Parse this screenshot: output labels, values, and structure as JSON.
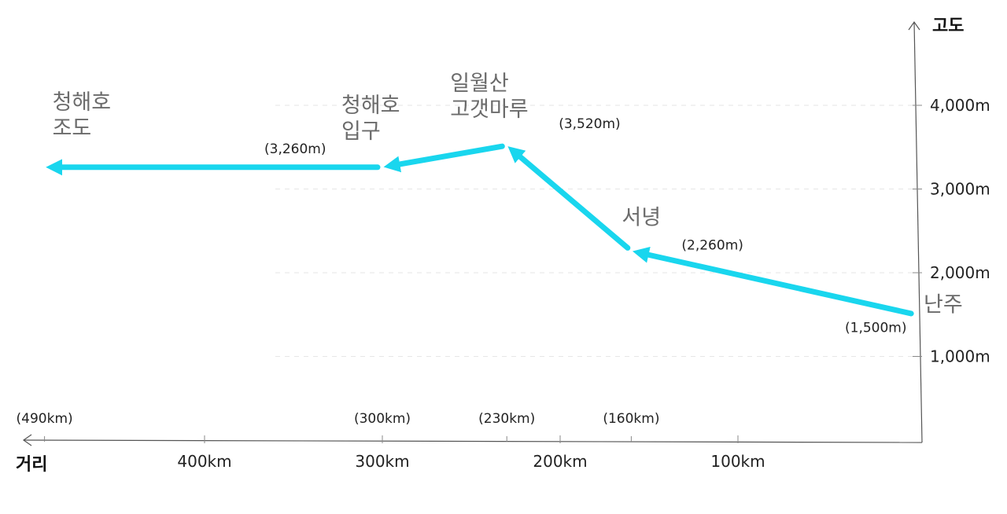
{
  "chart_data": {
    "type": "line",
    "xlabel": "거리",
    "ylabel": "고도",
    "x_reversed": true,
    "xlim": [
      0,
      505
    ],
    "ylim": [
      0,
      4700
    ],
    "x_ticks": [
      400,
      300,
      200,
      100
    ],
    "x_tick_labels": [
      "400km",
      "300km",
      "200km",
      "100km"
    ],
    "y_ticks": [
      1000,
      2000,
      3000,
      4000
    ],
    "y_tick_labels": [
      "1,000m",
      "2,000m",
      "3,000m",
      "4,000m"
    ],
    "grid": true,
    "points": [
      {
        "place": [
          "난주"
        ],
        "x": 0,
        "y": 1500,
        "elev_label": "(1,500m)",
        "dist_label": ""
      },
      {
        "place": [
          "서녕"
        ],
        "x": 160,
        "y": 2260,
        "elev_label": "(2,260m)",
        "dist_label": "(160km)"
      },
      {
        "place": [
          "일월산",
          "고갯마루"
        ],
        "x": 230,
        "y": 3520,
        "elev_label": "(3,520m)",
        "dist_label": "(230km)"
      },
      {
        "place": [
          "청해호",
          "입구"
        ],
        "x": 300,
        "y": 3260,
        "elev_label": "(3,260m)",
        "dist_label": "(300km)"
      },
      {
        "place": [
          "청해호",
          "조도"
        ],
        "x": 490,
        "y": 3260,
        "elev_label": "",
        "dist_label": "(490km)"
      }
    ],
    "line_color": "#19d6ee"
  }
}
